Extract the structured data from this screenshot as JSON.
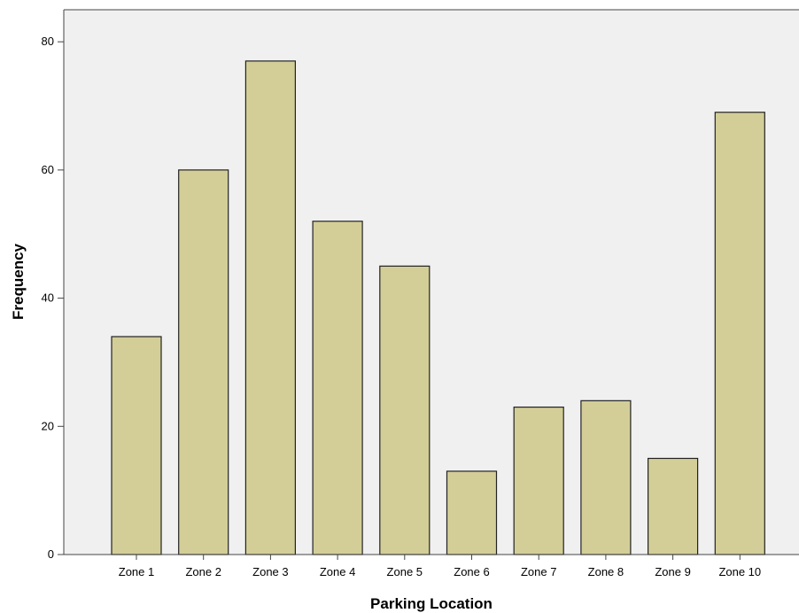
{
  "chart_data": {
    "type": "bar",
    "title": "",
    "xlabel": "Parking Location",
    "ylabel": "Frequency",
    "categories": [
      "Zone 1",
      "Zone 2",
      "Zone 3",
      "Zone 4",
      "Zone 5",
      "Zone 6",
      "Zone 7",
      "Zone 8",
      "Zone 9",
      "Zone 10"
    ],
    "values": [
      34,
      60,
      77,
      52,
      45,
      13,
      23,
      24,
      15,
      69
    ],
    "ylim": [
      0,
      85
    ],
    "yticks": [
      0,
      20,
      40,
      60,
      80
    ],
    "grid": false,
    "legend": "none",
    "colors": {
      "bar_fill": "#d3ce98",
      "bar_stroke": "#222222",
      "plot_background": "#f0f0f0",
      "axis": "#444444"
    }
  }
}
